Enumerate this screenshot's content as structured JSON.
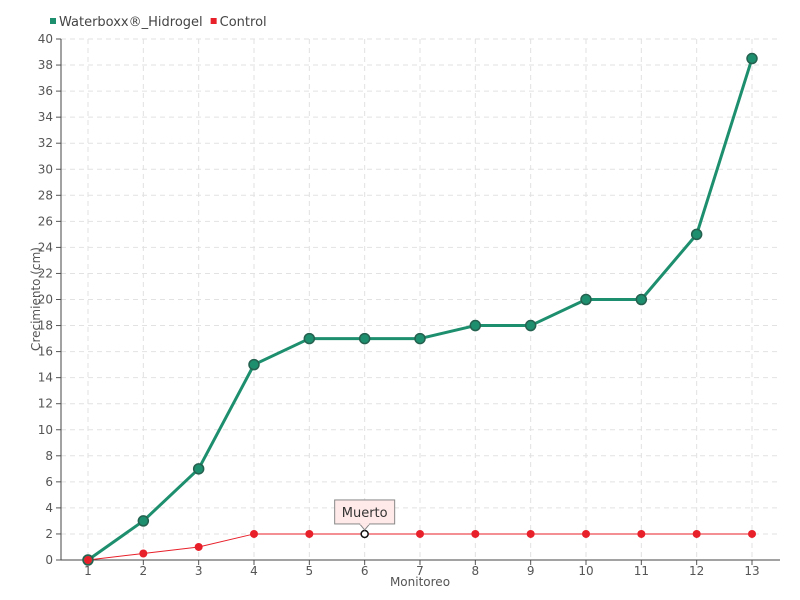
{
  "chart_data": {
    "type": "line",
    "title": "",
    "xlabel": "Monitoreo",
    "ylabel": "Crecimiento (cm)",
    "categories": [
      "1",
      "2",
      "3",
      "4",
      "5",
      "6",
      "7",
      "8",
      "9",
      "10",
      "11",
      "12",
      "13"
    ],
    "ylim": [
      0,
      40
    ],
    "yticks": [
      0,
      2,
      4,
      6,
      8,
      10,
      12,
      14,
      16,
      18,
      20,
      22,
      24,
      26,
      28,
      30,
      32,
      34,
      36,
      38,
      40
    ],
    "grid": true,
    "legend_position": "top-left",
    "series": [
      {
        "name": "Waterboxx®_Hidrogel",
        "color": "#1e8f6e",
        "values": [
          0,
          3,
          7,
          15,
          17,
          17,
          17,
          18,
          18,
          20,
          20,
          25,
          38.5
        ]
      },
      {
        "name": "Control",
        "color": "#e8202a",
        "values": [
          0,
          0.5,
          1,
          2,
          2,
          2,
          2,
          2,
          2,
          2,
          2,
          2,
          2
        ]
      }
    ],
    "annotations": [
      {
        "text": "Muerto",
        "series": "Control",
        "category": "6"
      }
    ]
  }
}
